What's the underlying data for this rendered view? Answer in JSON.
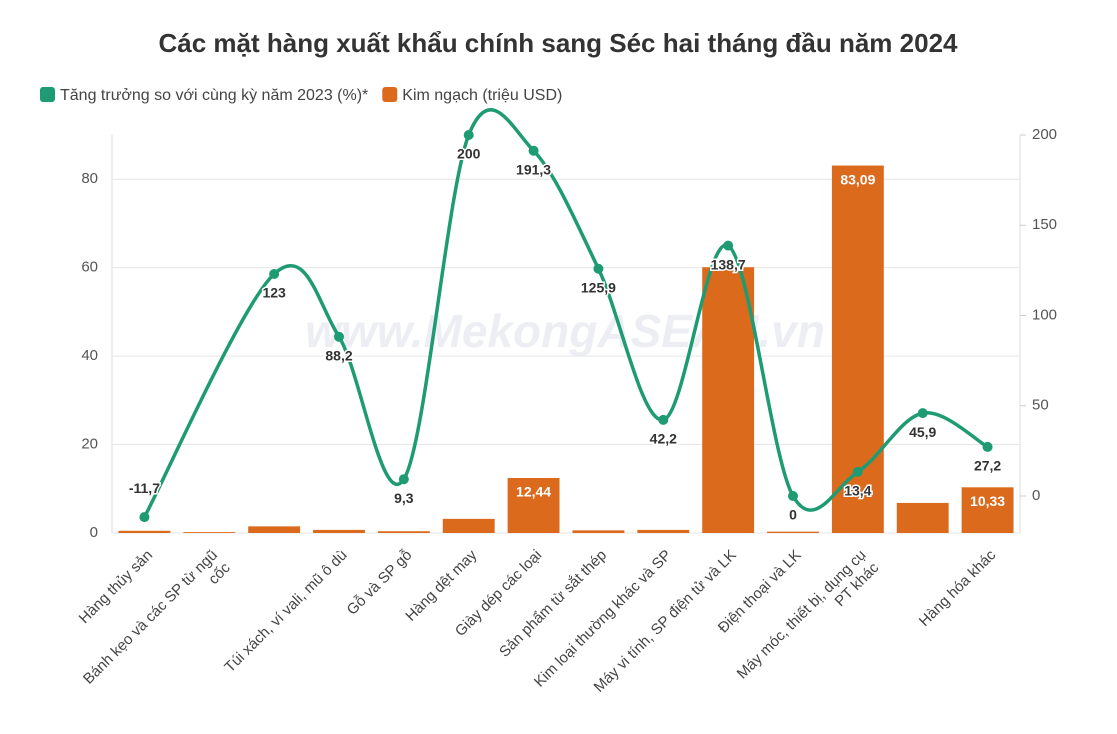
{
  "chart_data": {
    "type": "combo",
    "title": "Các mặt hàng xuất khẩu chính sang Séc hai tháng đầu năm 2024",
    "watermark": "www.MekongASEAN.vn",
    "categories": [
      "Hàng thủy sản",
      "Bánh kẹo và các SP từ ngũ\ncốc",
      null,
      "Túi xách, ví vali, mũ ô dù",
      "Gỗ và SP gỗ",
      "Hàng dệt may",
      "Giày dép các loại",
      "Sản phẩm từ sắt thép",
      "Kim loại thường khác và SP",
      "Máy vi tính, SP điện tử và LK",
      "Điện thoại và LK",
      "Máy móc, thiết bị, dụng cụ\nPT khác",
      null,
      "Hàng hóa khác"
    ],
    "series": [
      {
        "name": "Tăng trưởng so với cùng kỳ năm 2023 (%)*",
        "type": "line",
        "axis": "y2",
        "color": "#1e9b73",
        "values": [
          -11.7,
          null,
          123,
          88.2,
          9.3,
          200,
          191.3,
          125.9,
          42.2,
          138.7,
          0,
          13.4,
          45.9,
          27.2
        ],
        "value_labels": [
          "-11,7",
          null,
          "123",
          "88,2",
          "9,3",
          "200",
          "191,3",
          "125,9",
          "42,2",
          "138,7",
          "0",
          "13,4",
          "45,9",
          "27,2"
        ]
      },
      {
        "name": "Kim ngạch (triệu USD)",
        "type": "bar",
        "axis": "y",
        "color": "#dc6a1c",
        "values": [
          0.5,
          0.2,
          1.5,
          0.7,
          0.4,
          3.2,
          12.44,
          0.6,
          0.7,
          60.1,
          0.3,
          83.09,
          6.8,
          10.33
        ],
        "value_labels": [
          null,
          null,
          null,
          null,
          null,
          null,
          "12,44",
          null,
          null,
          null,
          null,
          "83,09",
          null,
          "10,33"
        ]
      }
    ],
    "ylim": [
      0,
      90
    ],
    "yticks": [
      0,
      20,
      40,
      60,
      80
    ],
    "y2lim": [
      -20.5,
      200
    ],
    "y2ticks": [
      0,
      50,
      100,
      150,
      200
    ],
    "grid": true,
    "legend": "top-left"
  }
}
